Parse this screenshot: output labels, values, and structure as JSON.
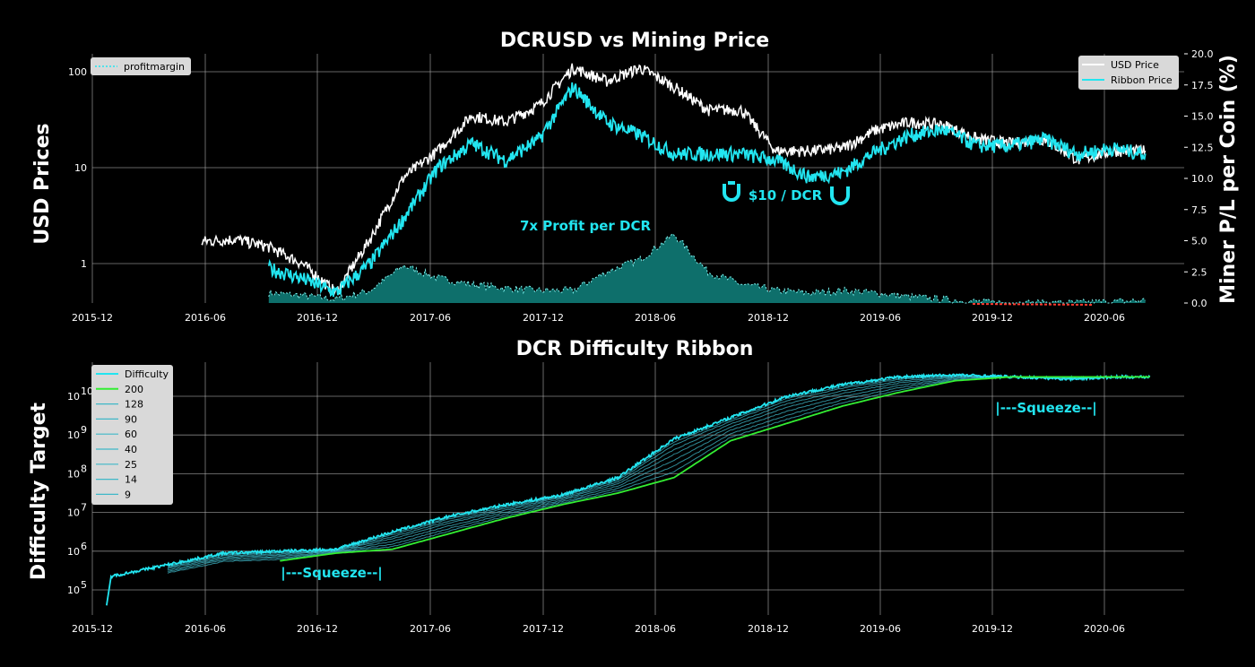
{
  "colors": {
    "background": "#000000",
    "usd": "#ffffff",
    "ribbon": "#22e5f0",
    "profit_fill": "#0e6f6b",
    "profit_line": "#7ff5f2",
    "loss": "#ff3b30",
    "ma200": "#33ee33",
    "ribbon_ma": "#3fb8c8",
    "grid": "#b0b0b0"
  },
  "chart_data": [
    {
      "type": "line",
      "title": "DCRUSD vs Mining Price",
      "ylabel": "USD Prices",
      "ylabel_right": "Miner P/L per Coin (%)",
      "yscale": "log",
      "ylim": [
        0.4,
        130
      ],
      "ylim_right": [
        0,
        20
      ],
      "x_tick_labels": [
        "2015-12",
        "2016-06",
        "2016-12",
        "2017-06",
        "2017-12",
        "2018-06",
        "2018-12",
        "2019-06",
        "2019-12",
        "2020-06"
      ],
      "y_tick_labels": [
        "1",
        "10",
        "100"
      ],
      "y_right_tick_labels": [
        "0.0",
        "2.5",
        "5.0",
        "7.5",
        "10.0",
        "12.5",
        "15.0",
        "17.5",
        "20.0"
      ],
      "legend_left": [
        "profitmargin"
      ],
      "legend_right": [
        "USD Price",
        "Ribbon Price"
      ],
      "annotations": {
        "peak": "7x Profit per DCR",
        "floor": "$10 / DCR"
      },
      "x": [
        2016.4,
        2016.55,
        2016.7,
        2016.85,
        2017.0,
        2017.15,
        2017.3,
        2017.45,
        2017.6,
        2017.75,
        2017.9,
        2018.05,
        2018.2,
        2018.35,
        2018.5,
        2018.65,
        2018.8,
        2018.95,
        2019.1,
        2019.25,
        2019.4,
        2019.55,
        2019.7,
        2019.85,
        2020.0,
        2020.15,
        2020.3,
        2020.45,
        2020.6
      ],
      "series": [
        {
          "name": "USD Price",
          "values": [
            1.7,
            1.8,
            1.5,
            1.0,
            0.5,
            1.8,
            8.0,
            15,
            35,
            30,
            45,
            110,
            80,
            110,
            70,
            40,
            40,
            15,
            15,
            16,
            25,
            30,
            28,
            20,
            18,
            20,
            12,
            15,
            15
          ]
        },
        {
          "name": "Ribbon Price",
          "values": [
            null,
            null,
            0.9,
            0.7,
            0.5,
            1.0,
            3.0,
            10,
            18,
            12,
            20,
            70,
            30,
            22,
            14,
            14,
            14,
            12,
            8,
            9,
            15,
            22,
            25,
            17,
            17,
            20,
            14,
            16,
            14
          ]
        },
        {
          "name": "profitmargin",
          "values": [
            null,
            null,
            0.8,
            0.6,
            0.3,
            1.0,
            3.0,
            2.0,
            1.5,
            1.2,
            1.0,
            1.0,
            2.5,
            3.5,
            5.5,
            2.5,
            1.5,
            1.0,
            0.8,
            1.0,
            0.8,
            0.5,
            0.3,
            0.1,
            0.0,
            0.0,
            0.0,
            0.1,
            0.2
          ]
        }
      ]
    },
    {
      "type": "line",
      "title": "DCR Difficulty Ribbon",
      "ylabel": "Difficulty Target",
      "yscale": "log",
      "ylim_exp": [
        4.6,
        10.6
      ],
      "x_tick_labels": [
        "2015-12",
        "2016-06",
        "2016-12",
        "2017-06",
        "2017-12",
        "2018-06",
        "2018-12",
        "2019-06",
        "2019-12",
        "2020-06"
      ],
      "y_tick_labels": [
        "10",
        "10",
        "10",
        "10",
        "10",
        "10"
      ],
      "y_tick_exponents": [
        "5",
        "6",
        "7",
        "8",
        "9",
        "10"
      ],
      "legend": [
        "Difficulty",
        "200",
        "128",
        "90",
        "60",
        "40",
        "25",
        "14",
        "9"
      ],
      "annotations": {
        "squeeze_1": "|---Squeeze--|",
        "squeeze_2": "|---Squeeze--|"
      },
      "x": [
        2016.0,
        2016.25,
        2016.5,
        2016.75,
        2017.0,
        2017.25,
        2017.5,
        2017.75,
        2018.0,
        2018.25,
        2018.5,
        2018.75,
        2019.0,
        2019.25,
        2019.5,
        2019.75,
        2020.0,
        2020.25,
        2020.5,
        2020.62
      ],
      "series": [
        {
          "name": "Difficulty",
          "log10_values": [
            5.35,
            5.65,
            5.95,
            6.0,
            6.05,
            6.5,
            6.9,
            7.2,
            7.45,
            7.9,
            8.9,
            9.45,
            10.0,
            10.3,
            10.5,
            10.55,
            10.5,
            10.45,
            10.5,
            10.5
          ]
        },
        {
          "name": "200",
          "log10_values": [
            null,
            null,
            null,
            5.75,
            5.95,
            6.05,
            6.45,
            6.85,
            7.2,
            7.5,
            7.9,
            8.85,
            9.3,
            9.75,
            10.1,
            10.4,
            10.5,
            10.5,
            10.5,
            10.5
          ]
        }
      ]
    }
  ]
}
